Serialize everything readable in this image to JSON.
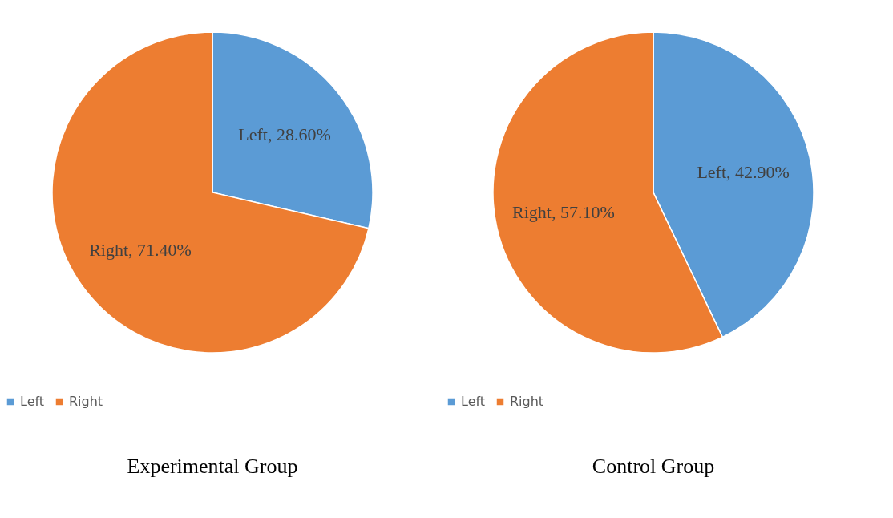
{
  "chart_data": [
    {
      "type": "pie",
      "title": "Experimental Group",
      "categories": [
        "Left",
        "Right"
      ],
      "values": [
        28.6,
        71.4
      ],
      "colors": [
        "#5b9bd5",
        "#ed7d31"
      ],
      "value_labels": [
        "Left, 28.60%",
        "Right, 71.40%"
      ],
      "legend": "bottom"
    },
    {
      "type": "pie",
      "title": "Control Group",
      "categories": [
        "Left",
        "Right"
      ],
      "values": [
        42.9,
        57.1
      ],
      "colors": [
        "#5b9bd5",
        "#ed7d31"
      ],
      "value_labels": [
        "Left, 42.90%",
        "Right, 57.10%"
      ],
      "legend": "bottom"
    }
  ]
}
